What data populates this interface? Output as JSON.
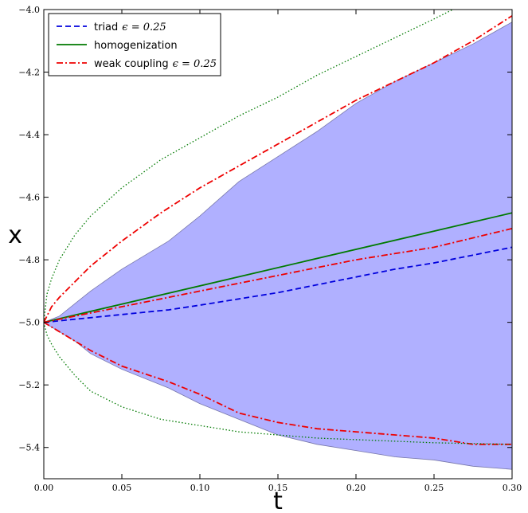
{
  "chart_data": {
    "type": "line",
    "xlabel": "t",
    "ylabel": "x",
    "xlim": [
      0.0,
      0.3
    ],
    "ylim": [
      -5.5,
      -4.0
    ],
    "xticks": [
      "0.00",
      "0.05",
      "0.10",
      "0.15",
      "0.20",
      "0.25",
      "0.30"
    ],
    "yticks": [
      "−4.0",
      "−4.2",
      "−4.4",
      "−4.6",
      "−4.8",
      "−5.0",
      "−5.2",
      "−5.4"
    ],
    "grid": false,
    "legend_position": "top-left",
    "band": {
      "color": "#b0b0ff",
      "x": [
        0.0,
        0.01,
        0.02,
        0.03,
        0.05,
        0.08,
        0.1,
        0.125,
        0.15,
        0.175,
        0.2,
        0.225,
        0.25,
        0.275,
        0.3
      ],
      "upper": [
        -5.0,
        -4.98,
        -4.94,
        -4.9,
        -4.83,
        -4.74,
        -4.66,
        -4.55,
        -4.47,
        -4.39,
        -4.3,
        -4.23,
        -4.17,
        -4.11,
        -4.04
      ],
      "lower": [
        -5.0,
        -5.03,
        -5.06,
        -5.1,
        -5.15,
        -5.21,
        -5.26,
        -5.31,
        -5.36,
        -5.39,
        -5.41,
        -5.43,
        -5.44,
        -5.46,
        -5.47
      ]
    },
    "series": [
      {
        "name": "triad",
        "param": "ϵ = 0.25",
        "style": "dashed",
        "color": "#0000dd",
        "x": [
          0.0,
          0.02,
          0.05,
          0.08,
          0.1,
          0.125,
          0.15,
          0.175,
          0.2,
          0.225,
          0.25,
          0.275,
          0.3
        ],
        "y": [
          -5.0,
          -4.99,
          -4.975,
          -4.96,
          -4.945,
          -4.925,
          -4.905,
          -4.88,
          -4.855,
          -4.83,
          -4.81,
          -4.785,
          -4.76
        ]
      },
      {
        "name": "homogenization",
        "param": "",
        "style": "solid",
        "color": "#007a00",
        "x": [
          0.0,
          0.3
        ],
        "y": [
          -5.0,
          -4.65
        ]
      },
      {
        "name": "weak coupling",
        "param": "ϵ = 0.25",
        "style": "dashdot",
        "color": "#ee0000",
        "x": [
          0.0,
          0.01,
          0.02,
          0.03,
          0.05,
          0.075,
          0.1,
          0.125,
          0.15,
          0.175,
          0.2,
          0.225,
          0.25,
          0.275,
          0.3
        ],
        "y": [
          -5.0,
          -4.99,
          -4.98,
          -4.97,
          -4.95,
          -4.925,
          -4.9,
          -4.875,
          -4.85,
          -4.825,
          -4.8,
          -4.78,
          -4.76,
          -4.73,
          -4.7
        ]
      }
    ],
    "envelopes": [
      {
        "role": "weak coupling upper",
        "style": "dashdot",
        "color": "#ee0000",
        "x": [
          0.0,
          0.005,
          0.01,
          0.02,
          0.03,
          0.05,
          0.075,
          0.1,
          0.125,
          0.15,
          0.175,
          0.2,
          0.225,
          0.25,
          0.275,
          0.3
        ],
        "y": [
          -5.0,
          -4.95,
          -4.92,
          -4.87,
          -4.82,
          -4.74,
          -4.65,
          -4.57,
          -4.5,
          -4.43,
          -4.36,
          -4.29,
          -4.23,
          -4.17,
          -4.1,
          -4.02
        ]
      },
      {
        "role": "weak coupling lower",
        "style": "dashdot",
        "color": "#ee0000",
        "x": [
          0.0,
          0.01,
          0.02,
          0.03,
          0.05,
          0.08,
          0.1,
          0.125,
          0.15,
          0.175,
          0.2,
          0.225,
          0.25,
          0.275,
          0.3
        ],
        "y": [
          -5.0,
          -5.03,
          -5.06,
          -5.09,
          -5.14,
          -5.19,
          -5.23,
          -5.29,
          -5.32,
          -5.34,
          -5.35,
          -5.36,
          -5.37,
          -5.39,
          -5.39
        ]
      },
      {
        "role": "homogenization upper",
        "style": "dotted",
        "color": "#007a00",
        "x": [
          0.0,
          0.002,
          0.005,
          0.01,
          0.02,
          0.03,
          0.05,
          0.075,
          0.1,
          0.125,
          0.15,
          0.175,
          0.2,
          0.225,
          0.25,
          0.262
        ],
        "y": [
          -5.0,
          -4.91,
          -4.86,
          -4.8,
          -4.72,
          -4.66,
          -4.57,
          -4.48,
          -4.41,
          -4.34,
          -4.28,
          -4.21,
          -4.15,
          -4.09,
          -4.03,
          -4.0
        ]
      },
      {
        "role": "homogenization lower",
        "style": "dotted",
        "color": "#007a00",
        "x": [
          0.0,
          0.002,
          0.005,
          0.01,
          0.02,
          0.03,
          0.05,
          0.075,
          0.1,
          0.125,
          0.15,
          0.175,
          0.2,
          0.25,
          0.3
        ],
        "y": [
          -5.0,
          -5.04,
          -5.07,
          -5.11,
          -5.17,
          -5.22,
          -5.27,
          -5.31,
          -5.33,
          -5.35,
          -5.36,
          -5.37,
          -5.375,
          -5.385,
          -5.39
        ]
      }
    ]
  }
}
